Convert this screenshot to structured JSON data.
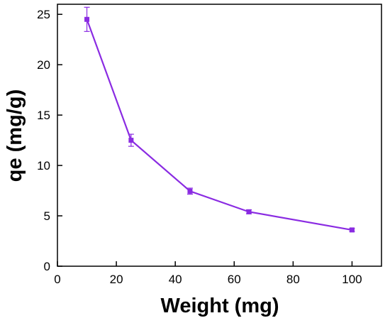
{
  "chart_data": {
    "type": "line",
    "title": "",
    "xlabel": "Weight (mg)",
    "ylabel": "qe (mg/g)",
    "xlim": [
      0,
      110
    ],
    "ylim": [
      0,
      26
    ],
    "x_ticks": [
      0,
      20,
      40,
      60,
      80,
      100
    ],
    "y_ticks": [
      0,
      5,
      10,
      15,
      20,
      25
    ],
    "x_tick_labels": [
      "0",
      "20",
      "40",
      "60",
      "80",
      "100"
    ],
    "y_tick_labels": [
      "0",
      "5",
      "10",
      "15",
      "20",
      "25"
    ],
    "grid": false,
    "legend": "none",
    "series": [
      {
        "x": [
          10,
          25,
          45,
          65,
          100
        ],
        "y": [
          24.5,
          12.5,
          7.45,
          5.4,
          3.6
        ],
        "error": [
          1.2,
          0.6,
          0.3,
          0.2,
          0.15
        ],
        "color": "#8a2be2",
        "marker": "square"
      }
    ]
  }
}
